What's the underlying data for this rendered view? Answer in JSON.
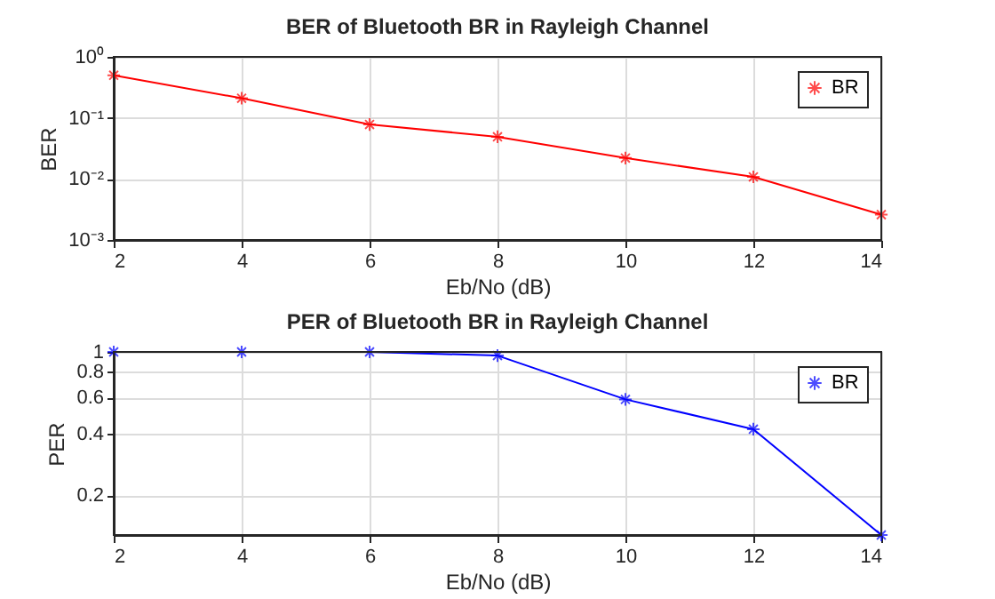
{
  "chart_data": [
    {
      "type": "line",
      "title": "BER of Bluetooth BR in Rayleigh Channel",
      "xlabel": "Eb/No (dB)",
      "ylabel": "BER",
      "x": [
        2,
        4,
        6,
        8,
        10,
        12,
        14
      ],
      "series": [
        {
          "name": "BR",
          "color": "#ff0000",
          "values": [
            0.5,
            0.21,
            0.078,
            0.049,
            0.022,
            0.0108,
            0.0026
          ]
        }
      ],
      "xlim": [
        2,
        14
      ],
      "xticks": [
        2,
        4,
        6,
        8,
        10,
        12,
        14
      ],
      "ylim": [
        0.001,
        1
      ],
      "yticks": [
        {
          "value": 0.001,
          "label": "10⁻³"
        },
        {
          "value": 0.01,
          "label": "10⁻²"
        },
        {
          "value": 0.1,
          "label": "10⁻¹"
        },
        {
          "value": 1,
          "label": "10⁰"
        }
      ],
      "log": "y",
      "grid": true,
      "legend": "top right",
      "marker": "cross",
      "line_style": "solid"
    },
    {
      "type": "line",
      "title": "PER of Bluetooth BR in Rayleigh Channel",
      "xlabel": "Eb/No (dB)",
      "ylabel": "PER",
      "x": [
        2,
        4,
        6,
        8,
        10,
        12,
        14
      ],
      "series": [
        {
          "name": "BR",
          "color": "#0000ff",
          "values": [
            1,
            1,
            1,
            0.96,
            0.587,
            0.42,
            0.128
          ]
        }
      ],
      "xlim": [
        2,
        14
      ],
      "xticks": [
        2,
        4,
        6,
        8,
        10,
        12,
        14
      ],
      "ylim": [
        0.128,
        1
      ],
      "yticks": [
        0.2,
        0.4,
        0.6,
        0.8,
        1
      ],
      "log": "y",
      "grid": true,
      "legend": "top right",
      "marker": "cross",
      "line_style": "solid"
    }
  ]
}
